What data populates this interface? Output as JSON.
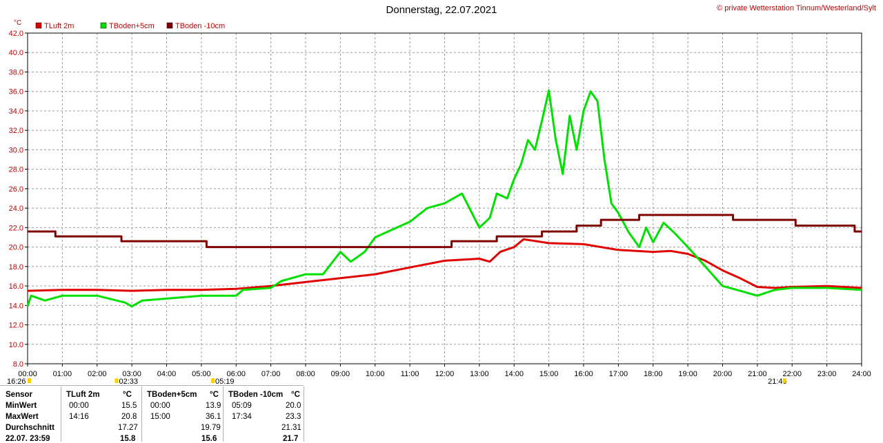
{
  "header": {
    "title": "Donnerstag, 22.07.2021",
    "copyright": "© private Wetterstation Tinnum/Westerland/Sylt"
  },
  "colors": {
    "tluft": "#e00000",
    "tboden5": "#00e000",
    "tboden10": "#800000"
  },
  "chart_data": {
    "type": "line",
    "unit": "°C",
    "ylim": [
      8,
      42
    ],
    "y_ticks": [
      "8.0",
      "10.0",
      "12.0",
      "14.0",
      "16.0",
      "18.0",
      "20.0",
      "22.0",
      "24.0",
      "26.0",
      "28.0",
      "30.0",
      "32.0",
      "34.0",
      "36.0",
      "38.0",
      "40.0",
      "42.0"
    ],
    "xlim": [
      0,
      24
    ],
    "x_ticks": [
      "00:00",
      "01:00",
      "02:00",
      "03:00",
      "04:00",
      "05:00",
      "06:00",
      "07:00",
      "08:00",
      "09:00",
      "10:00",
      "11:00",
      "12:00",
      "13:00",
      "14:00",
      "15:00",
      "16:00",
      "17:00",
      "18:00",
      "19:00",
      "20:00",
      "21:00",
      "22:00",
      "23:00",
      "24:00"
    ],
    "grid": true,
    "legend": "top-left",
    "markers": [
      "16:26",
      "02:33",
      "05:19",
      "21:46"
    ],
    "series": [
      {
        "name": "TLuft 2m",
        "color": "#e00000",
        "points": [
          [
            0,
            15.5
          ],
          [
            1,
            15.6
          ],
          [
            2,
            15.6
          ],
          [
            3,
            15.5
          ],
          [
            4,
            15.6
          ],
          [
            5,
            15.6
          ],
          [
            6,
            15.7
          ],
          [
            7,
            16.0
          ],
          [
            8,
            16.4
          ],
          [
            9,
            16.8
          ],
          [
            10,
            17.2
          ],
          [
            11,
            17.9
          ],
          [
            12,
            18.6
          ],
          [
            13,
            18.8
          ],
          [
            13.3,
            18.5
          ],
          [
            13.6,
            19.5
          ],
          [
            14,
            20.0
          ],
          [
            14.27,
            20.8
          ],
          [
            15,
            20.4
          ],
          [
            16,
            20.3
          ],
          [
            17,
            19.7
          ],
          [
            18,
            19.5
          ],
          [
            18.5,
            19.6
          ],
          [
            19,
            19.3
          ],
          [
            19.5,
            18.6
          ],
          [
            20,
            17.6
          ],
          [
            20.5,
            16.8
          ],
          [
            21,
            15.9
          ],
          [
            21.5,
            15.8
          ],
          [
            22,
            15.9
          ],
          [
            23,
            16.0
          ],
          [
            24,
            15.8
          ]
        ]
      },
      {
        "name": "TBoden+5cm",
        "color": "#00e000",
        "points": [
          [
            0,
            13.9
          ],
          [
            0.1,
            15.0
          ],
          [
            0.5,
            14.5
          ],
          [
            1,
            15.0
          ],
          [
            2,
            15.0
          ],
          [
            2.8,
            14.3
          ],
          [
            3,
            13.9
          ],
          [
            3.3,
            14.5
          ],
          [
            4,
            14.7
          ],
          [
            5,
            15.0
          ],
          [
            6,
            15.0
          ],
          [
            6.2,
            15.6
          ],
          [
            7,
            15.8
          ],
          [
            7.3,
            16.5
          ],
          [
            8,
            17.2
          ],
          [
            8.5,
            17.2
          ],
          [
            9,
            19.5
          ],
          [
            9.3,
            18.5
          ],
          [
            9.7,
            19.5
          ],
          [
            10,
            21.0
          ],
          [
            11,
            22.6
          ],
          [
            11.5,
            24.0
          ],
          [
            12,
            24.5
          ],
          [
            12.5,
            25.5
          ],
          [
            13,
            22.0
          ],
          [
            13.3,
            23.0
          ],
          [
            13.5,
            25.5
          ],
          [
            13.8,
            25.0
          ],
          [
            14,
            27.0
          ],
          [
            14.2,
            28.5
          ],
          [
            14.4,
            31.0
          ],
          [
            14.6,
            30.0
          ],
          [
            14.8,
            33.0
          ],
          [
            15,
            36.1
          ],
          [
            15.2,
            31.0
          ],
          [
            15.4,
            27.5
          ],
          [
            15.6,
            33.5
          ],
          [
            15.8,
            30.0
          ],
          [
            16,
            34.0
          ],
          [
            16.2,
            36.0
          ],
          [
            16.4,
            35.0
          ],
          [
            16.6,
            29.0
          ],
          [
            16.8,
            24.5
          ],
          [
            17,
            23.5
          ],
          [
            17.3,
            21.5
          ],
          [
            17.6,
            20.0
          ],
          [
            17.8,
            22.0
          ],
          [
            18,
            20.5
          ],
          [
            18.3,
            22.5
          ],
          [
            18.6,
            21.5
          ],
          [
            19,
            20.0
          ],
          [
            19.5,
            18.0
          ],
          [
            20,
            16.0
          ],
          [
            20.5,
            15.5
          ],
          [
            21,
            15.0
          ],
          [
            21.5,
            15.6
          ],
          [
            22,
            15.8
          ],
          [
            23,
            15.8
          ],
          [
            24,
            15.6
          ]
        ]
      },
      {
        "name": "TBoden -10cm",
        "color": "#800000",
        "points": [
          [
            0,
            21.6
          ],
          [
            0.8,
            21.6
          ],
          [
            0.8,
            21.1
          ],
          [
            2.7,
            21.1
          ],
          [
            2.7,
            20.6
          ],
          [
            5.15,
            20.6
          ],
          [
            5.15,
            20.0
          ],
          [
            12.2,
            20.0
          ],
          [
            12.2,
            20.6
          ],
          [
            13.5,
            20.6
          ],
          [
            13.5,
            21.1
          ],
          [
            14.8,
            21.1
          ],
          [
            14.8,
            21.6
          ],
          [
            15.8,
            21.6
          ],
          [
            15.8,
            22.2
          ],
          [
            16.5,
            22.2
          ],
          [
            16.5,
            22.8
          ],
          [
            17.6,
            22.8
          ],
          [
            17.6,
            23.3
          ],
          [
            20.3,
            23.3
          ],
          [
            20.3,
            22.8
          ],
          [
            22.1,
            22.8
          ],
          [
            22.1,
            22.2
          ],
          [
            23.8,
            22.2
          ],
          [
            23.8,
            21.6
          ],
          [
            24,
            21.6
          ]
        ]
      }
    ]
  },
  "stats": {
    "row_labels": [
      "Sensor",
      "MinWert",
      "MaxWert",
      "Durchschnitt",
      "22.07. 23:59"
    ],
    "columns": [
      {
        "name": "TLuft 2m",
        "unit": "°C",
        "min_time": "00:00",
        "min": "15.5",
        "max_time": "14:16",
        "max": "20.8",
        "avg": "17.27",
        "last": "15.8"
      },
      {
        "name": "TBoden+5cm",
        "unit": "°C",
        "min_time": "00:00",
        "min": "13.9",
        "max_time": "15:00",
        "max": "36.1",
        "avg": "19.79",
        "last": "15.6"
      },
      {
        "name": "TBoden -10cm",
        "unit": "°C",
        "min_time": "05:09",
        "min": "20.0",
        "max_time": "17:34",
        "max": "23.3",
        "avg": "21.31",
        "last": "21.7"
      }
    ]
  }
}
